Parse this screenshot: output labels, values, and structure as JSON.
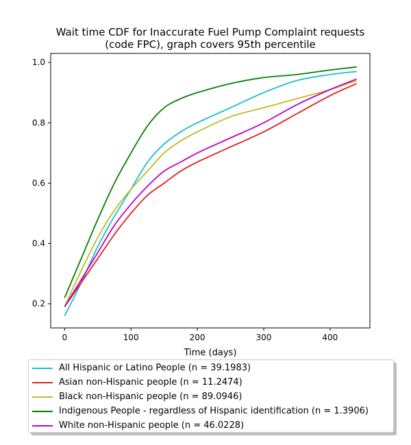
{
  "chart_data": {
    "type": "line",
    "title": "Wait time CDF for Inaccurate Fuel Pump Complaint  requests",
    "subtitle": "(code FPC), graph covers 95th percentile",
    "xlabel": "Time (days)",
    "ylabel": "",
    "xlim": [
      -21,
      460
    ],
    "ylim": [
      0.12,
      1.03
    ],
    "xticks": [
      "0",
      "100",
      "200",
      "300",
      "400"
    ],
    "yticks": [
      "0.2",
      "0.4",
      "0.6",
      "0.8",
      "1.0"
    ],
    "grid": false,
    "legend_position": "below plot",
    "x": [
      0,
      25,
      50,
      75,
      100,
      125,
      150,
      175,
      200,
      250,
      300,
      350,
      400,
      440
    ],
    "series": [
      {
        "name": "All Hispanic or Latino People (n = 39.1983)",
        "color": "#17becf",
        "values": [
          0.16,
          0.27,
          0.39,
          0.49,
          0.58,
          0.67,
          0.73,
          0.77,
          0.8,
          0.85,
          0.9,
          0.94,
          0.96,
          0.97
        ]
      },
      {
        "name": "Asian non-Hispanic people (n = 11.2474)",
        "color": "#e41a1c",
        "values": [
          0.19,
          0.27,
          0.35,
          0.43,
          0.5,
          0.56,
          0.6,
          0.64,
          0.67,
          0.72,
          0.77,
          0.83,
          0.89,
          0.93
        ]
      },
      {
        "name": "Black non-Hispanic people (n = 89.0946)",
        "color": "#bcbd22",
        "values": [
          0.19,
          0.31,
          0.42,
          0.51,
          0.58,
          0.64,
          0.7,
          0.74,
          0.77,
          0.82,
          0.85,
          0.88,
          0.91,
          0.94
        ]
      },
      {
        "name": "Indigenous People - regardless of Hispanic identification (n = 1.3906)",
        "color": "#008000",
        "values": [
          0.22,
          0.35,
          0.48,
          0.6,
          0.7,
          0.79,
          0.85,
          0.88,
          0.9,
          0.93,
          0.95,
          0.96,
          0.975,
          0.985
        ]
      },
      {
        "name": "White non-Hispanic people (n = 46.0228)",
        "color": "#bf00bf",
        "values": [
          0.19,
          0.28,
          0.37,
          0.46,
          0.53,
          0.59,
          0.64,
          0.67,
          0.7,
          0.75,
          0.8,
          0.86,
          0.91,
          0.945
        ]
      }
    ]
  }
}
